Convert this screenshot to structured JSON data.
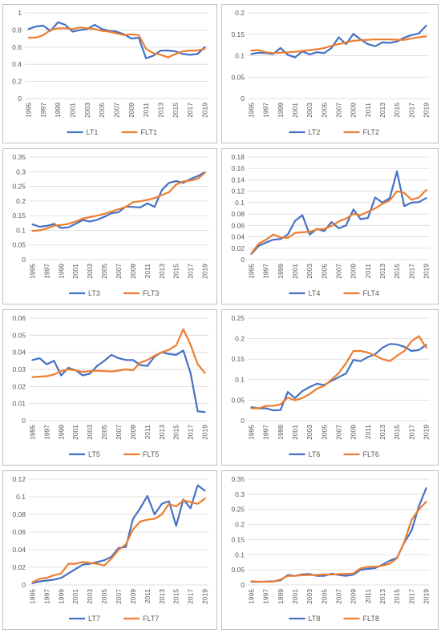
{
  "colors": {
    "lt": "#4472C4",
    "flt": "#ED7D31",
    "grid": "#d9d9d9",
    "text": "#595959"
  },
  "chart_data": [
    {
      "type": "line",
      "x": [
        "1995",
        "1996",
        "1997",
        "1998",
        "1999",
        "2000",
        "2001",
        "2002",
        "2003",
        "2004",
        "2005",
        "2006",
        "2007",
        "2008",
        "2009",
        "2010",
        "2011",
        "2012",
        "2013",
        "2014",
        "2015",
        "2016",
        "2017",
        "2018",
        "2019"
      ],
      "xtick_labels": [
        "1995",
        "1997",
        "1999",
        "2001",
        "2003",
        "2005",
        "2007",
        "2009",
        "2011",
        "2013",
        "2015",
        "2017",
        "2019"
      ],
      "y_ticks": [
        "0",
        "0.2",
        "0.4",
        "0.6",
        "0.8",
        "1"
      ],
      "ylim": [
        0,
        1
      ],
      "legend": "bottom",
      "grid": true,
      "series": [
        {
          "name": "LT1",
          "values": [
            0.81,
            0.84,
            0.85,
            0.79,
            0.89,
            0.86,
            0.78,
            0.8,
            0.81,
            0.86,
            0.81,
            0.79,
            0.78,
            0.75,
            0.7,
            0.71,
            0.47,
            0.5,
            0.56,
            0.56,
            0.55,
            0.52,
            0.51,
            0.52,
            0.6
          ]
        },
        {
          "name": "FLT1",
          "values": [
            0.71,
            0.71,
            0.74,
            0.8,
            0.82,
            0.82,
            0.81,
            0.83,
            0.82,
            0.81,
            0.79,
            0.78,
            0.76,
            0.74,
            0.75,
            0.74,
            0.58,
            0.53,
            0.51,
            0.48,
            0.52,
            0.55,
            0.56,
            0.56,
            0.58
          ]
        }
      ]
    },
    {
      "type": "line",
      "x": [
        "1995",
        "1996",
        "1997",
        "1998",
        "1999",
        "2000",
        "2001",
        "2002",
        "2003",
        "2004",
        "2005",
        "2006",
        "2007",
        "2008",
        "2009",
        "2010",
        "2011",
        "2012",
        "2013",
        "2014",
        "2015",
        "2016",
        "2017",
        "2018",
        "2019"
      ],
      "xtick_labels": [
        "1995",
        "1997",
        "1999",
        "2001",
        "2003",
        "2005",
        "2007",
        "2009",
        "2011",
        "2013",
        "2015",
        "2017",
        "2019"
      ],
      "y_ticks": [
        "0",
        "0.05",
        "0.1",
        "0.15",
        "0.2"
      ],
      "ylim": [
        0,
        0.2
      ],
      "legend": "bottom",
      "grid": true,
      "series": [
        {
          "name": "LT2",
          "values": [
            0.104,
            0.107,
            0.106,
            0.104,
            0.118,
            0.102,
            0.096,
            0.11,
            0.103,
            0.108,
            0.106,
            0.118,
            0.143,
            0.127,
            0.151,
            0.138,
            0.127,
            0.122,
            0.131,
            0.13,
            0.133,
            0.142,
            0.148,
            0.152,
            0.17
          ]
        },
        {
          "name": "FLT2",
          "values": [
            0.112,
            0.113,
            0.108,
            0.106,
            0.107,
            0.108,
            0.109,
            0.111,
            0.113,
            0.115,
            0.118,
            0.123,
            0.127,
            0.131,
            0.135,
            0.136,
            0.137,
            0.138,
            0.138,
            0.138,
            0.137,
            0.137,
            0.14,
            0.143,
            0.145
          ]
        }
      ]
    },
    {
      "type": "line",
      "x": [
        "1995",
        "1996",
        "1997",
        "1998",
        "1999",
        "2000",
        "2001",
        "2002",
        "2003",
        "2004",
        "2005",
        "2006",
        "2007",
        "2008",
        "2009",
        "2010",
        "2011",
        "2012",
        "2013",
        "2014",
        "2015",
        "2016",
        "2017",
        "2018",
        "2019"
      ],
      "xtick_labels": [
        "1995",
        "1997",
        "1999",
        "2001",
        "2003",
        "2005",
        "2007",
        "2009",
        "2011",
        "2013",
        "2015",
        "2017",
        "2019"
      ],
      "y_ticks": [
        "0",
        "0.05",
        "0.1",
        "0.15",
        "0.2",
        "0.25",
        "0.3",
        "0.35"
      ],
      "ylim": [
        0,
        0.35
      ],
      "legend": "bottom",
      "grid": true,
      "series": [
        {
          "name": "LT3",
          "values": [
            0.12,
            0.112,
            0.115,
            0.122,
            0.108,
            0.11,
            0.122,
            0.135,
            0.13,
            0.136,
            0.146,
            0.158,
            0.162,
            0.181,
            0.18,
            0.178,
            0.192,
            0.18,
            0.237,
            0.262,
            0.268,
            0.262,
            0.275,
            0.285,
            0.298
          ]
        },
        {
          "name": "FLT3",
          "values": [
            0.098,
            0.1,
            0.106,
            0.116,
            0.118,
            0.122,
            0.13,
            0.14,
            0.145,
            0.15,
            0.156,
            0.164,
            0.172,
            0.18,
            0.196,
            0.199,
            0.204,
            0.21,
            0.22,
            0.23,
            0.256,
            0.267,
            0.27,
            0.276,
            0.296
          ]
        }
      ]
    },
    {
      "type": "line",
      "x": [
        "1995",
        "1996",
        "1997",
        "1998",
        "1999",
        "2000",
        "2001",
        "2002",
        "2003",
        "2004",
        "2005",
        "2006",
        "2007",
        "2008",
        "2009",
        "2010",
        "2011",
        "2012",
        "2013",
        "2014",
        "2015",
        "2016",
        "2017",
        "2018",
        "2019"
      ],
      "xtick_labels": [
        "1995",
        "1997",
        "1999",
        "2001",
        "2003",
        "2005",
        "2007",
        "2009",
        "2011",
        "2013",
        "2015",
        "2017",
        "2019"
      ],
      "y_ticks": [
        "0",
        "0.02",
        "0.04",
        "0.06",
        "0.08",
        "0.1",
        "0.12",
        "0.14",
        "0.16",
        "0.18"
      ],
      "ylim": [
        0,
        0.18
      ],
      "legend": "bottom",
      "grid": true,
      "series": [
        {
          "name": "LT4",
          "values": [
            0.01,
            0.024,
            0.03,
            0.035,
            0.036,
            0.044,
            0.068,
            0.078,
            0.044,
            0.054,
            0.05,
            0.066,
            0.055,
            0.06,
            0.088,
            0.071,
            0.073,
            0.109,
            0.1,
            0.108,
            0.155,
            0.094,
            0.1,
            0.101,
            0.108
          ]
        },
        {
          "name": "FLT4",
          "values": [
            0.011,
            0.028,
            0.035,
            0.044,
            0.039,
            0.038,
            0.047,
            0.048,
            0.049,
            0.053,
            0.054,
            0.059,
            0.067,
            0.072,
            0.08,
            0.078,
            0.084,
            0.09,
            0.098,
            0.104,
            0.12,
            0.117,
            0.105,
            0.109,
            0.122
          ]
        }
      ]
    },
    {
      "type": "line",
      "x": [
        "1995",
        "1996",
        "1997",
        "1998",
        "1999",
        "2000",
        "2001",
        "2002",
        "2003",
        "2004",
        "2005",
        "2006",
        "2007",
        "2008",
        "2009",
        "2010",
        "2011",
        "2012",
        "2013",
        "2014",
        "2015",
        "2016",
        "2017",
        "2018",
        "2019"
      ],
      "xtick_labels": [
        "1995",
        "1997",
        "1999",
        "2001",
        "2003",
        "2005",
        "2007",
        "2009",
        "2011",
        "2013",
        "2015",
        "2017",
        "2019"
      ],
      "y_ticks": [
        "0",
        "0.01",
        "0.02",
        "0.03",
        "0.04",
        "0.05",
        "0.06"
      ],
      "ylim": [
        0,
        0.06
      ],
      "legend": "bottom",
      "grid": true,
      "series": [
        {
          "name": "LT5",
          "values": [
            0.0355,
            0.0365,
            0.033,
            0.035,
            0.0265,
            0.031,
            0.0295,
            0.0265,
            0.0275,
            0.032,
            0.035,
            0.0385,
            0.0365,
            0.0355,
            0.0355,
            0.0325,
            0.032,
            0.0375,
            0.04,
            0.039,
            0.0385,
            0.041,
            0.028,
            0.0055,
            0.005
          ]
        },
        {
          "name": "FLT5",
          "values": [
            0.0255,
            0.0258,
            0.026,
            0.027,
            0.029,
            0.03,
            0.0295,
            0.0285,
            0.029,
            0.0292,
            0.029,
            0.0288,
            0.0293,
            0.03,
            0.0295,
            0.034,
            0.0355,
            0.038,
            0.04,
            0.0415,
            0.044,
            0.0535,
            0.0445,
            0.033,
            0.028
          ]
        }
      ]
    },
    {
      "type": "line",
      "x": [
        "1995",
        "1996",
        "1997",
        "1998",
        "1999",
        "2000",
        "2001",
        "2002",
        "2003",
        "2004",
        "2005",
        "2006",
        "2007",
        "2008",
        "2009",
        "2010",
        "2011",
        "2012",
        "2013",
        "2014",
        "2015",
        "2016",
        "2017",
        "2018",
        "2019"
      ],
      "xtick_labels": [
        "1995",
        "1997",
        "1999",
        "2001",
        "2003",
        "2005",
        "2007",
        "2009",
        "2011",
        "2013",
        "2015",
        "2017",
        "2019"
      ],
      "y_ticks": [
        "0",
        "0.05",
        "0.1",
        "0.15",
        "0.2",
        "0.25"
      ],
      "ylim": [
        0,
        0.25
      ],
      "legend": "bottom",
      "grid": true,
      "series": [
        {
          "name": "LT6",
          "values": [
            0.033,
            0.03,
            0.03,
            0.025,
            0.026,
            0.07,
            0.055,
            0.072,
            0.082,
            0.09,
            0.087,
            0.097,
            0.106,
            0.115,
            0.148,
            0.145,
            0.155,
            0.162,
            0.178,
            0.187,
            0.186,
            0.18,
            0.17,
            0.172,
            0.185
          ]
        },
        {
          "name": "FLT6",
          "values": [
            0.03,
            0.03,
            0.036,
            0.036,
            0.04,
            0.056,
            0.05,
            0.055,
            0.065,
            0.078,
            0.085,
            0.1,
            0.116,
            0.14,
            0.17,
            0.17,
            0.166,
            0.159,
            0.15,
            0.145,
            0.158,
            0.17,
            0.194,
            0.206,
            0.178
          ]
        }
      ]
    },
    {
      "type": "line",
      "x": [
        "1995",
        "1996",
        "1997",
        "1998",
        "1999",
        "2000",
        "2001",
        "2002",
        "2003",
        "2004",
        "2005",
        "2006",
        "2007",
        "2008",
        "2009",
        "2010",
        "2011",
        "2012",
        "2013",
        "2014",
        "2015",
        "2016",
        "2017",
        "2018",
        "2019"
      ],
      "xtick_labels": [
        "1995",
        "1997",
        "1999",
        "2001",
        "2003",
        "2005",
        "2007",
        "2009",
        "2011",
        "2013",
        "2015",
        "2017",
        "2019"
      ],
      "y_ticks": [
        "0",
        "0.02",
        "0.04",
        "0.06",
        "0.08",
        "0.1",
        "0.12"
      ],
      "ylim": [
        0,
        0.12
      ],
      "legend": "bottom",
      "grid": true,
      "series": [
        {
          "name": "LT7",
          "values": [
            0.002,
            0.004,
            0.005,
            0.006,
            0.008,
            0.013,
            0.018,
            0.023,
            0.024,
            0.026,
            0.028,
            0.032,
            0.042,
            0.043,
            0.075,
            0.087,
            0.101,
            0.08,
            0.092,
            0.095,
            0.067,
            0.097,
            0.087,
            0.113,
            0.107
          ]
        },
        {
          "name": "FLT7",
          "values": [
            0.003,
            0.007,
            0.008,
            0.011,
            0.013,
            0.024,
            0.024,
            0.026,
            0.025,
            0.024,
            0.022,
            0.03,
            0.04,
            0.046,
            0.063,
            0.072,
            0.074,
            0.075,
            0.08,
            0.092,
            0.089,
            0.096,
            0.094,
            0.092,
            0.098
          ]
        }
      ]
    },
    {
      "type": "line",
      "x": [
        "1995",
        "1996",
        "1997",
        "1998",
        "1999",
        "2000",
        "2001",
        "2002",
        "2003",
        "2004",
        "2005",
        "2006",
        "2007",
        "2008",
        "2009",
        "2010",
        "2011",
        "2012",
        "2013",
        "2014",
        "2015",
        "2016",
        "2017",
        "2018",
        "2019"
      ],
      "xtick_labels": [
        "1995",
        "1997",
        "1999",
        "2001",
        "2003",
        "2005",
        "2007",
        "2009",
        "2011",
        "2013",
        "2015",
        "2017",
        "2019"
      ],
      "y_ticks": [
        "0",
        "0.05",
        "0.1",
        "0.15",
        "0.2",
        "0.25",
        "0.3",
        "0.35"
      ],
      "ylim": [
        0,
        0.35
      ],
      "legend": "bottom",
      "grid": true,
      "series": [
        {
          "name": "LT8",
          "values": [
            0.01,
            0.01,
            0.011,
            0.012,
            0.015,
            0.033,
            0.03,
            0.035,
            0.036,
            0.03,
            0.03,
            0.037,
            0.033,
            0.03,
            0.034,
            0.05,
            0.053,
            0.056,
            0.067,
            0.08,
            0.09,
            0.14,
            0.18,
            0.26,
            0.32
          ]
        },
        {
          "name": "FLT8",
          "values": [
            0.012,
            0.011,
            0.01,
            0.011,
            0.018,
            0.03,
            0.03,
            0.032,
            0.033,
            0.033,
            0.035,
            0.034,
            0.036,
            0.036,
            0.038,
            0.055,
            0.06,
            0.06,
            0.064,
            0.07,
            0.088,
            0.142,
            0.215,
            0.25,
            0.275
          ]
        }
      ]
    }
  ]
}
